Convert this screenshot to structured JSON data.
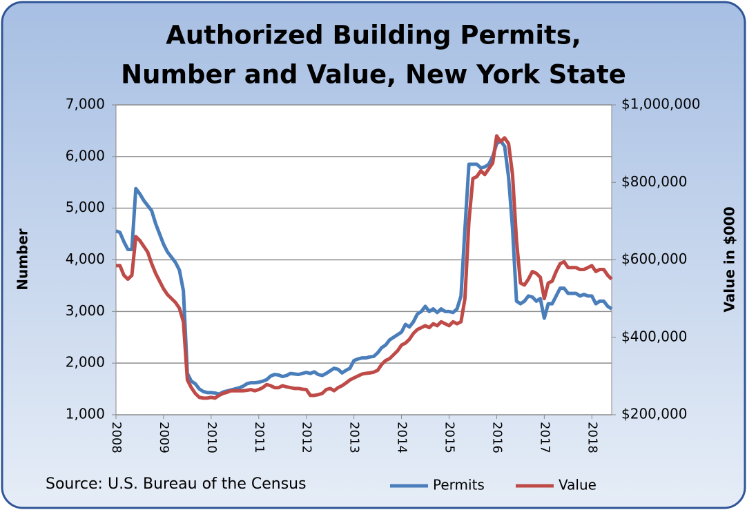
{
  "chart_data": {
    "type": "line",
    "title": [
      "Authorized Building Permits,",
      "Number and Value, New York State"
    ],
    "ylabel": "Number",
    "y2label": "Value in $000",
    "source": "Source: U.S. Bureau of the Census",
    "grid": true,
    "ylim": [
      1000,
      7000
    ],
    "yticks": [
      {
        "value": 1000,
        "label": "1,000"
      },
      {
        "value": 2000,
        "label": "2,000"
      },
      {
        "value": 3000,
        "label": "3,000"
      },
      {
        "value": 4000,
        "label": "4,000"
      },
      {
        "value": 5000,
        "label": "5,000"
      },
      {
        "value": 6000,
        "label": "6,000"
      },
      {
        "value": 7000,
        "label": "7,000"
      }
    ],
    "y2lim": [
      200000,
      1000000
    ],
    "y2ticks": [
      {
        "value": 200000,
        "label": "$200,000"
      },
      {
        "value": 400000,
        "label": "$400,000"
      },
      {
        "value": 600000,
        "label": "$600,000"
      },
      {
        "value": 800000,
        "label": "$800,000"
      },
      {
        "value": 1000000,
        "label": "$1,000,000"
      }
    ],
    "categories": [
      "2008",
      null,
      null,
      null,
      null,
      null,
      null,
      null,
      null,
      null,
      null,
      null,
      "2009",
      null,
      null,
      null,
      null,
      null,
      null,
      null,
      null,
      null,
      null,
      null,
      "2010",
      null,
      null,
      null,
      null,
      null,
      null,
      null,
      null,
      null,
      null,
      null,
      "2011",
      null,
      null,
      null,
      null,
      null,
      null,
      null,
      null,
      null,
      null,
      null,
      "2012",
      null,
      null,
      null,
      null,
      null,
      null,
      null,
      null,
      null,
      null,
      null,
      "2013",
      null,
      null,
      null,
      null,
      null,
      null,
      null,
      null,
      null,
      null,
      null,
      "2014",
      null,
      null,
      null,
      null,
      null,
      null,
      null,
      null,
      null,
      null,
      null,
      "2015",
      null,
      null,
      null,
      null,
      null,
      null,
      null,
      null,
      null,
      null,
      null,
      "2016",
      null,
      null,
      null,
      null,
      null,
      null,
      null,
      null,
      null,
      null,
      null,
      "2017",
      null,
      null,
      null,
      null,
      null,
      null,
      null,
      null,
      null,
      null,
      null,
      "2018",
      null,
      null,
      null,
      null,
      null
    ],
    "series": [
      {
        "name": "Permits",
        "color": "#4a7ebb",
        "values": [
          4560,
          4530,
          4350,
          4200,
          4200,
          5380,
          5280,
          5150,
          5050,
          4950,
          4700,
          4500,
          4300,
          4150,
          4050,
          3950,
          3800,
          3400,
          1800,
          1650,
          1600,
          1500,
          1450,
          1430,
          1430,
          1420,
          1400,
          1440,
          1460,
          1480,
          1500,
          1520,
          1550,
          1600,
          1620,
          1620,
          1630,
          1650,
          1680,
          1750,
          1780,
          1770,
          1740,
          1760,
          1800,
          1790,
          1780,
          1800,
          1820,
          1800,
          1830,
          1780,
          1760,
          1800,
          1850,
          1900,
          1880,
          1810,
          1860,
          1900,
          2050,
          2080,
          2100,
          2100,
          2120,
          2130,
          2200,
          2300,
          2350,
          2450,
          2500,
          2550,
          2600,
          2750,
          2700,
          2800,
          2950,
          3000,
          3100,
          3000,
          3050,
          2980,
          3050,
          3000,
          3000,
          2980,
          3050,
          3300,
          4600,
          5850,
          5850,
          5850,
          5780,
          5800,
          5850,
          6000,
          6250,
          6300,
          6200,
          5600,
          4600,
          3200,
          3150,
          3200,
          3300,
          3280,
          3200,
          3250,
          2870,
          3150,
          3150,
          3300,
          3450,
          3450,
          3350,
          3350,
          3350,
          3300,
          3330,
          3300,
          3300,
          3150,
          3200,
          3200,
          3100,
          3050
        ]
      },
      {
        "name": "Value",
        "color": "#be4b48",
        "axis": "y2",
        "values": [
          585000,
          585000,
          560000,
          550000,
          560000,
          660000,
          650000,
          635000,
          620000,
          590000,
          565000,
          545000,
          525000,
          510000,
          500000,
          490000,
          475000,
          440000,
          290000,
          270000,
          255000,
          245000,
          243000,
          243000,
          245000,
          243000,
          250000,
          255000,
          258000,
          262000,
          262000,
          262000,
          262000,
          263000,
          265000,
          262000,
          265000,
          270000,
          278000,
          275000,
          270000,
          270000,
          275000,
          272000,
          270000,
          268000,
          268000,
          266000,
          265000,
          250000,
          250000,
          252000,
          255000,
          265000,
          268000,
          262000,
          270000,
          275000,
          282000,
          290000,
          295000,
          300000,
          305000,
          307000,
          308000,
          310000,
          315000,
          330000,
          340000,
          345000,
          355000,
          365000,
          380000,
          385000,
          395000,
          410000,
          420000,
          425000,
          430000,
          425000,
          435000,
          430000,
          440000,
          435000,
          430000,
          440000,
          435000,
          440000,
          500000,
          700000,
          810000,
          815000,
          830000,
          820000,
          835000,
          850000,
          920000,
          905000,
          915000,
          900000,
          820000,
          650000,
          540000,
          535000,
          550000,
          570000,
          565000,
          555000,
          500000,
          540000,
          545000,
          570000,
          590000,
          595000,
          580000,
          580000,
          580000,
          575000,
          575000,
          580000,
          585000,
          570000,
          575000,
          575000,
          560000,
          550000
        ]
      }
    ]
  }
}
